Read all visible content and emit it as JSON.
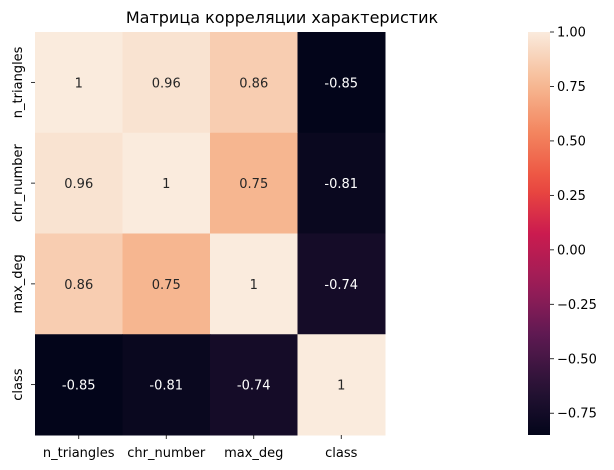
{
  "chart_data": {
    "type": "heatmap",
    "title": "Матрица корреляции характеристик",
    "x_labels": [
      "n_triangles",
      "chr_number",
      "max_deg",
      "class"
    ],
    "y_labels": [
      "n_triangles",
      "chr_number",
      "max_deg",
      "class"
    ],
    "values": [
      [
        1,
        0.96,
        0.86,
        -0.85
      ],
      [
        0.96,
        1,
        0.75,
        -0.81
      ],
      [
        0.86,
        0.75,
        1,
        -0.74
      ],
      [
        -0.85,
        -0.81,
        -0.74,
        1
      ]
    ],
    "cell_labels": [
      [
        "1",
        "0.96",
        "0.86",
        "-0.85"
      ],
      [
        "0.96",
        "1",
        "0.75",
        "-0.81"
      ],
      [
        "0.86",
        "0.75",
        "1",
        "-0.74"
      ],
      [
        "-0.85",
        "-0.81",
        "-0.74",
        "1"
      ]
    ],
    "colorbar": {
      "vmin": -0.85,
      "vmax": 1.0,
      "ticks": [
        "1.00",
        "0.75",
        "0.50",
        "0.25",
        "0.00",
        "−0.25",
        "−0.50",
        "−0.75"
      ],
      "tick_values": [
        1.0,
        0.75,
        0.5,
        0.25,
        0.0,
        -0.25,
        -0.5,
        -0.75
      ]
    },
    "colormap": "rocket"
  }
}
